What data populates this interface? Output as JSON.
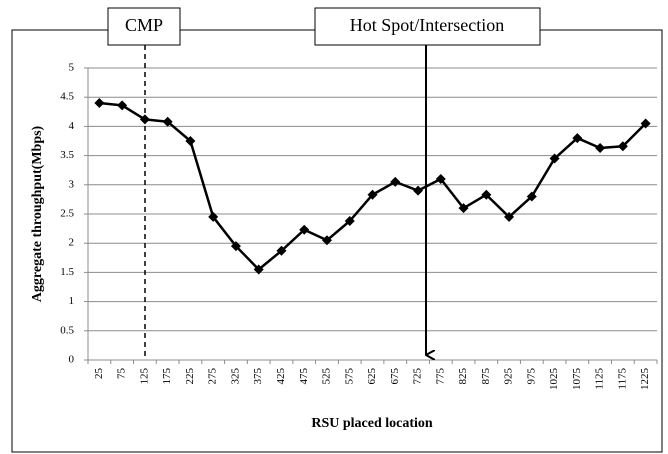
{
  "chart_data": {
    "type": "line",
    "x_label": "RSU placed location",
    "y_label": "Aggregate throughput(Mbps)",
    "annotations": [
      {
        "text": "CMP"
      },
      {
        "text": "Hot Spot/Intersection"
      }
    ],
    "categories": [
      25,
      75,
      125,
      175,
      225,
      275,
      325,
      375,
      425,
      475,
      525,
      575,
      625,
      675,
      725,
      775,
      825,
      875,
      925,
      975,
      1025,
      1075,
      1125,
      1175,
      1225
    ],
    "series": [
      {
        "color": "#000000",
        "values": [
          4.4,
          4.36,
          4.12,
          4.08,
          3.75,
          2.45,
          1.95,
          1.55,
          1.87,
          2.23,
          2.05,
          2.38,
          2.83,
          3.05,
          2.9,
          3.1,
          2.6,
          2.83,
          2.45,
          2.8,
          3.45,
          3.8,
          3.63,
          3.66,
          4.05
        ]
      }
    ],
    "ylim": [
      0,
      5
    ],
    "yticks": [
      0,
      0.5,
      1,
      1.5,
      2,
      2.5,
      3,
      3.5,
      4,
      4.5,
      5
    ],
    "grid": true
  }
}
